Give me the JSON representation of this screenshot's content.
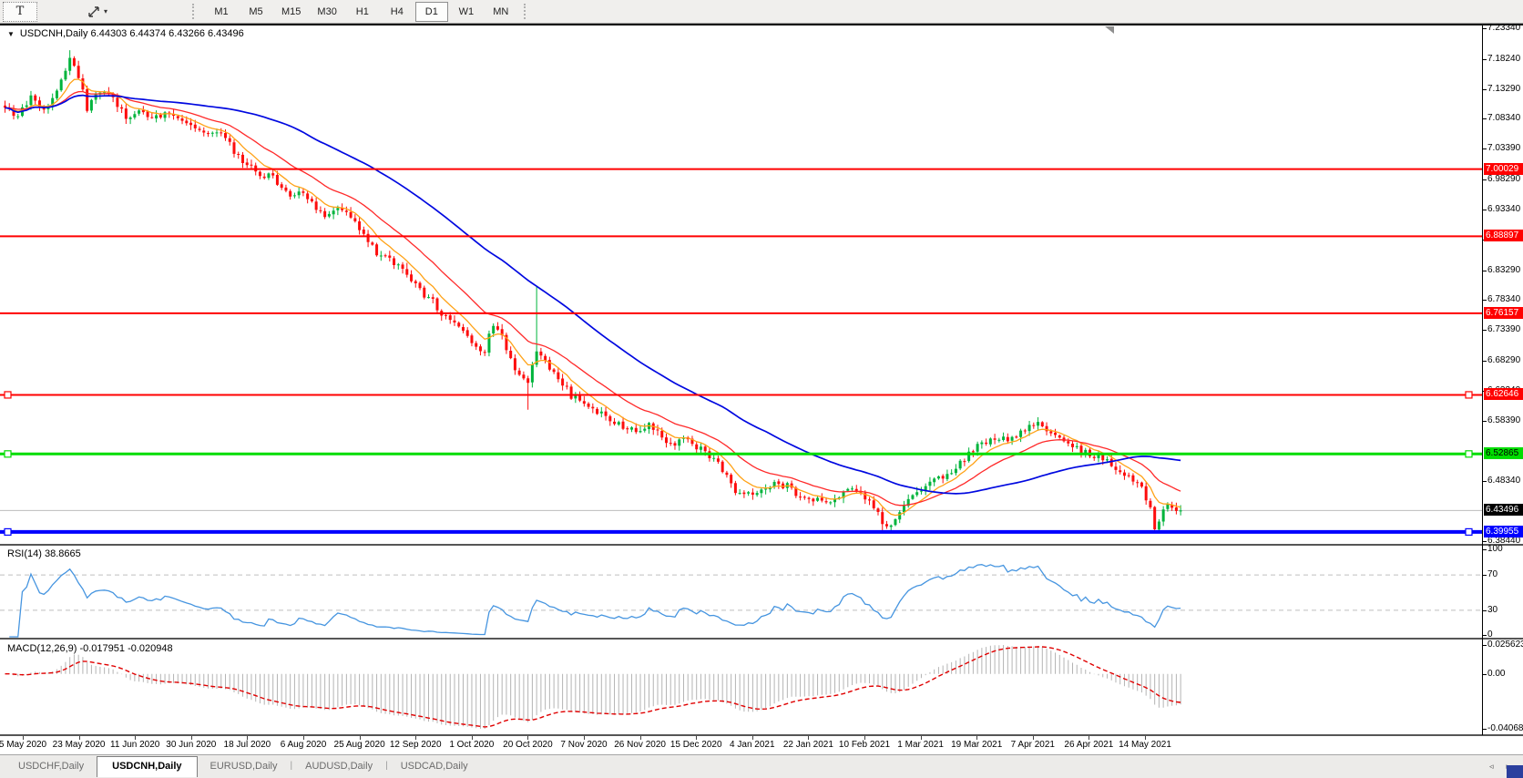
{
  "toolbar": {
    "text_tool_label": "T",
    "cursor_tool_caret": "▾",
    "timeframes": [
      {
        "label": "M1",
        "active": false
      },
      {
        "label": "M5",
        "active": false
      },
      {
        "label": "M15",
        "active": false
      },
      {
        "label": "M30",
        "active": false
      },
      {
        "label": "H1",
        "active": false
      },
      {
        "label": "H4",
        "active": false
      },
      {
        "label": "D1",
        "active": true
      },
      {
        "label": "W1",
        "active": false
      },
      {
        "label": "MN",
        "active": false
      }
    ]
  },
  "chart": {
    "collapse_arrow": "▼",
    "title": "USDCNH,Daily 6.44303 6.44374 6.43266 6.43496",
    "symbol": "USDCNH",
    "period": "Daily"
  },
  "rsi_panel": {
    "label": "RSI(14) 38.8665",
    "value": 38.8665,
    "ticks": [
      100,
      70,
      30,
      0
    ],
    "dashed_levels": [
      70,
      30
    ],
    "line_color": "#4695e0"
  },
  "macd_panel": {
    "label": "MACD(12,26,9) -0.017951 -0.020948",
    "macd_value": -0.017951,
    "signal_value": -0.020948,
    "ticks": [
      "0.025623",
      "0.00",
      "-0.040687"
    ],
    "histogram_color": "#b4b4b4",
    "signal_color": "#e00000"
  },
  "tabbar": {
    "tabs": [
      {
        "label": "USDCHF,Daily",
        "active": false
      },
      {
        "label": "USDCNH,Daily",
        "active": true
      },
      {
        "label": "EURUSD,Daily",
        "active": false
      },
      {
        "label": "AUDUSD,Daily",
        "active": false
      },
      {
        "label": "USDCAD,Daily",
        "active": false
      }
    ],
    "scroll_left": "◃",
    "scroll_right": "▹"
  },
  "chart_data": {
    "type": "candlestick",
    "symbol": "USDCNH",
    "timeframe": "Daily",
    "ohlc_display": {
      "open": "6.44303",
      "high": "6.44374",
      "low": "6.43266",
      "close": "6.43496"
    },
    "bar_count": 273,
    "last_close": 6.43496,
    "bull_color": "#00b43c",
    "bear_color": "#fd0d0d",
    "y_axis": {
      "min": 6.3844,
      "max": 7.2334,
      "ticks": [
        7.2334,
        7.1824,
        7.1329,
        7.0834,
        7.0339,
        6.9829,
        6.9334,
        6.8839,
        6.8329,
        6.7834,
        6.7339,
        6.6829,
        6.6334,
        6.5839,
        6.4834,
        6.3844
      ],
      "tick_labels": [
        "7.23340",
        "7.18240",
        "7.13290",
        "7.08340",
        "7.03390",
        "6.98290",
        "6.93340",
        "6.88390",
        "6.83290",
        "6.78340",
        "6.73390",
        "6.68290",
        "6.63340",
        "6.58390",
        "6.48340",
        "6.38440"
      ]
    },
    "x_axis_dates": [
      "5 May 2020",
      "23 May 2020",
      "11 Jun 2020",
      "30 Jun 2020",
      "18 Jul 2020",
      "6 Aug 2020",
      "25 Aug 2020",
      "12 Sep 2020",
      "1 Oct 2020",
      "20 Oct 2020",
      "7 Nov 2020",
      "26 Nov 2020",
      "15 Dec 2020",
      "4 Jan 2021",
      "22 Jan 2021",
      "10 Feb 2021",
      "1 Mar 2021",
      "19 Mar 2021",
      "7 Apr 2021",
      "26 Apr 2021",
      "14 May 2021"
    ],
    "price_path_anchors": [
      [
        0,
        7.105
      ],
      [
        3,
        7.085
      ],
      [
        6,
        7.12
      ],
      [
        9,
        7.1
      ],
      [
        12,
        7.13
      ],
      [
        15,
        7.185
      ],
      [
        17,
        7.155
      ],
      [
        19,
        7.1
      ],
      [
        22,
        7.13
      ],
      [
        25,
        7.115
      ],
      [
        28,
        7.085
      ],
      [
        31,
        7.1
      ],
      [
        34,
        7.085
      ],
      [
        38,
        7.09
      ],
      [
        42,
        7.075
      ],
      [
        46,
        7.06
      ],
      [
        50,
        7.065
      ],
      [
        54,
        7.02
      ],
      [
        58,
        6.995
      ],
      [
        62,
        6.985
      ],
      [
        66,
        6.96
      ],
      [
        70,
        6.955
      ],
      [
        74,
        6.92
      ],
      [
        78,
        6.935
      ],
      [
        82,
        6.9
      ],
      [
        86,
        6.86
      ],
      [
        90,
        6.845
      ],
      [
        93,
        6.825
      ],
      [
        96,
        6.8
      ],
      [
        99,
        6.78
      ],
      [
        102,
        6.755
      ],
      [
        105,
        6.74
      ],
      [
        108,
        6.71
      ],
      [
        111,
        6.7
      ],
      [
        113,
        6.745
      ],
      [
        115,
        6.72
      ],
      [
        118,
        6.67
      ],
      [
        121,
        6.645
      ],
      [
        123,
        6.7
      ],
      [
        125,
        6.68
      ],
      [
        128,
        6.655
      ],
      [
        131,
        6.625
      ],
      [
        134,
        6.615
      ],
      [
        137,
        6.6
      ],
      [
        140,
        6.585
      ],
      [
        143,
        6.575
      ],
      [
        146,
        6.565
      ],
      [
        149,
        6.575
      ],
      [
        152,
        6.555
      ],
      [
        155,
        6.545
      ],
      [
        158,
        6.555
      ],
      [
        161,
        6.535
      ],
      [
        164,
        6.52
      ],
      [
        166,
        6.5
      ],
      [
        169,
        6.465
      ],
      [
        172,
        6.46
      ],
      [
        175,
        6.475
      ],
      [
        178,
        6.48
      ],
      [
        181,
        6.475
      ],
      [
        184,
        6.46
      ],
      [
        187,
        6.455
      ],
      [
        190,
        6.45
      ],
      [
        193,
        6.46
      ],
      [
        196,
        6.47
      ],
      [
        199,
        6.455
      ],
      [
        202,
        6.43
      ],
      [
        204,
        6.405
      ],
      [
        206,
        6.42
      ],
      [
        208,
        6.445
      ],
      [
        211,
        6.46
      ],
      [
        214,
        6.48
      ],
      [
        217,
        6.49
      ],
      [
        220,
        6.505
      ],
      [
        223,
        6.53
      ],
      [
        226,
        6.545
      ],
      [
        229,
        6.55
      ],
      [
        232,
        6.555
      ],
      [
        235,
        6.565
      ],
      [
        238,
        6.58
      ],
      [
        240,
        6.575
      ],
      [
        243,
        6.565
      ],
      [
        246,
        6.55
      ],
      [
        249,
        6.535
      ],
      [
        252,
        6.525
      ],
      [
        255,
        6.52
      ],
      [
        258,
        6.5
      ],
      [
        261,
        6.48
      ],
      [
        263,
        6.47
      ],
      [
        265,
        6.435
      ],
      [
        266,
        6.408
      ],
      [
        267,
        6.412
      ],
      [
        268,
        6.44
      ],
      [
        269,
        6.45
      ],
      [
        270,
        6.44
      ],
      [
        271,
        6.432
      ],
      [
        272,
        6.435
      ]
    ],
    "wick_events": [
      {
        "i": 15,
        "high": 7.197
      },
      {
        "i": 93,
        "high": 6.845
      },
      {
        "i": 121,
        "low": 6.602
      },
      {
        "i": 123,
        "high": 6.806
      },
      {
        "i": 203,
        "low": 6.399
      },
      {
        "i": 205,
        "low": 6.401
      },
      {
        "i": 266,
        "low": 6.3985
      }
    ],
    "moving_averages": [
      {
        "name": "fast",
        "type": "ema",
        "period": 8,
        "color": "#ffa216",
        "width": 1.3
      },
      {
        "name": "medium",
        "type": "ema",
        "period": 21,
        "color": "#ff2a2a",
        "width": 1.3
      },
      {
        "name": "slow",
        "type": "sma",
        "period": 55,
        "color": "#0008e0",
        "width": 1.7
      }
    ],
    "horizontal_lines": [
      {
        "label": "7.00029",
        "price": 7.00029,
        "color": "#ff0000",
        "text_color": "#ffffff",
        "thickness": 2,
        "handles": false
      },
      {
        "label": "6.88897",
        "price": 6.88897,
        "color": "#ff0000",
        "text_color": "#ffffff",
        "thickness": 2,
        "handles": false
      },
      {
        "label": "6.76157",
        "price": 6.76157,
        "color": "#ff0000",
        "text_color": "#ffffff",
        "thickness": 2,
        "handles": false
      },
      {
        "label": "6.62646",
        "price": 6.62646,
        "color": "#ff0000",
        "text_color": "#ffffff",
        "thickness": 2,
        "handles": true
      },
      {
        "label": "6.52865",
        "price": 6.52865,
        "color": "#00dd00",
        "text_color": "#000000",
        "thickness": 3,
        "handles": true
      },
      {
        "label": "6.39955",
        "price": 6.39955,
        "color": "#0000ff",
        "text_color": "#ffffff",
        "thickness": 4,
        "handles": true
      }
    ],
    "current_price": {
      "label": "6.43496",
      "value": 6.43496,
      "line_color": "#bdbdbd",
      "label_bg": "#000000"
    }
  }
}
